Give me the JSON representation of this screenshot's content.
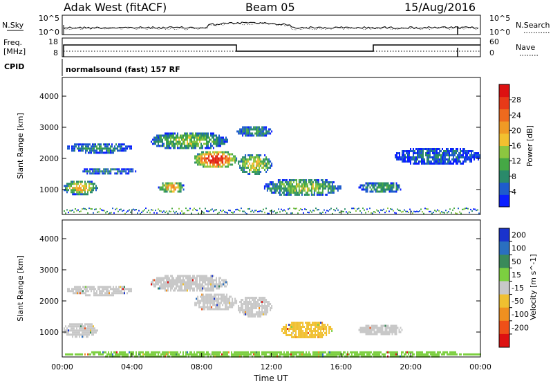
{
  "header": {
    "station": "Adak West (fitACF)",
    "beam": "Beam 05",
    "date": "15/Aug/2016"
  },
  "noise_panel": {
    "left_label": "N.Sky",
    "right_label": "N.Search",
    "left_ticks": [
      "10^5",
      "10^0"
    ],
    "right_ticks": [
      "10^5",
      "10^0"
    ]
  },
  "freq_panel": {
    "left_label_1": "Freq.",
    "left_label_2": "[MHz]",
    "right_label": "Nave",
    "left_ticks": [
      "18",
      "8"
    ],
    "right_ticks": [
      "60",
      "0"
    ]
  },
  "cpid": {
    "label": "CPID",
    "value": "normalsound (fast) 157 RF"
  },
  "chart_data": [
    {
      "type": "heatmap",
      "quantity": "Power",
      "ylabel": "Slant Range [km]",
      "yticks": [
        1000,
        2000,
        3000,
        4000
      ],
      "ylim": [
        200,
        4600
      ],
      "xlim_hours": [
        0,
        24
      ],
      "colorbar": {
        "label": "Power [dB]",
        "ticks": [
          "4",
          "8",
          "12",
          "16",
          "20",
          "24",
          "28"
        ],
        "colors": [
          "#0a1fff",
          "#1e5ccc",
          "#2a8a6a",
          "#45a845",
          "#8cc640",
          "#f2c030",
          "#f09a25",
          "#ee6a1e",
          "#e83a18",
          "#dd1111"
        ]
      },
      "echo_regions": [
        {
          "t": [
            0.0,
            2.0
          ],
          "r": [
            850,
            1350
          ],
          "level": 0.6
        },
        {
          "t": [
            0.2,
            4.0
          ],
          "r": [
            2200,
            2550
          ],
          "level": 0.3
        },
        {
          "t": [
            1.0,
            4.2
          ],
          "r": [
            1500,
            1750
          ],
          "level": 0.25
        },
        {
          "t": [
            5.5,
            7.0
          ],
          "r": [
            900,
            1300
          ],
          "level": 0.7
        },
        {
          "t": [
            5.0,
            9.5
          ],
          "r": [
            2300,
            2900
          ],
          "level": 0.45
        },
        {
          "t": [
            7.5,
            10.0
          ],
          "r": [
            1700,
            2300
          ],
          "level": 0.95
        },
        {
          "t": [
            10.0,
            12.0
          ],
          "r": [
            1500,
            2200
          ],
          "level": 0.55
        },
        {
          "t": [
            10.0,
            12.0
          ],
          "r": [
            2700,
            3100
          ],
          "level": 0.3
        },
        {
          "t": [
            11.5,
            16.0
          ],
          "r": [
            800,
            1400
          ],
          "level": 0.45
        },
        {
          "t": [
            17.0,
            19.5
          ],
          "r": [
            900,
            1300
          ],
          "level": 0.35
        },
        {
          "t": [
            19.0,
            24.0
          ],
          "r": [
            1800,
            2400
          ],
          "level": 0.2
        }
      ]
    },
    {
      "type": "heatmap",
      "quantity": "Velocity",
      "ylabel": "Slant Range [km]",
      "yticks": [
        1000,
        2000,
        3000,
        4000
      ],
      "ylim": [
        200,
        4600
      ],
      "xlim_hours": [
        0,
        24
      ],
      "xlabel": "Time UT",
      "xticks": [
        "00:00",
        "04:00",
        "08:00",
        "12:00",
        "16:00",
        "20:00",
        "00:00"
      ],
      "colorbar": {
        "label": "Velocity [m s^-1]",
        "ticks": [
          "200",
          "100",
          "50",
          "15",
          "-15",
          "-50",
          "-100",
          "-200"
        ],
        "colors": [
          "#1a33cc",
          "#2a6fc0",
          "#3a8a5a",
          "#7ccf40",
          "#c8c8c8",
          "#f0c030",
          "#f09020",
          "#ee5018",
          "#dd1111"
        ]
      },
      "echo_regions": [
        {
          "t": [
            0.0,
            2.0
          ],
          "r": [
            850,
            1350
          ],
          "color": "#c8c8c8"
        },
        {
          "t": [
            0.2,
            4.0
          ],
          "r": [
            2200,
            2550
          ],
          "color": "#c8c8c8"
        },
        {
          "t": [
            5.0,
            9.5
          ],
          "r": [
            2300,
            2900
          ],
          "color": "#c8c8c8"
        },
        {
          "t": [
            7.5,
            10.0
          ],
          "r": [
            1700,
            2300
          ],
          "color": "#c8c8c8"
        },
        {
          "t": [
            10.0,
            12.0
          ],
          "r": [
            1500,
            2200
          ],
          "color": "#c8c8c8"
        },
        {
          "t": [
            12.5,
            15.5
          ],
          "r": [
            800,
            1400
          ],
          "color": "#f0c030"
        },
        {
          "t": [
            17.0,
            19.5
          ],
          "r": [
            900,
            1300
          ],
          "color": "#c8c8c8"
        },
        {
          "t": [
            0.0,
            24.0
          ],
          "r": [
            200,
            450
          ],
          "color": "#7ccf40"
        }
      ]
    }
  ]
}
